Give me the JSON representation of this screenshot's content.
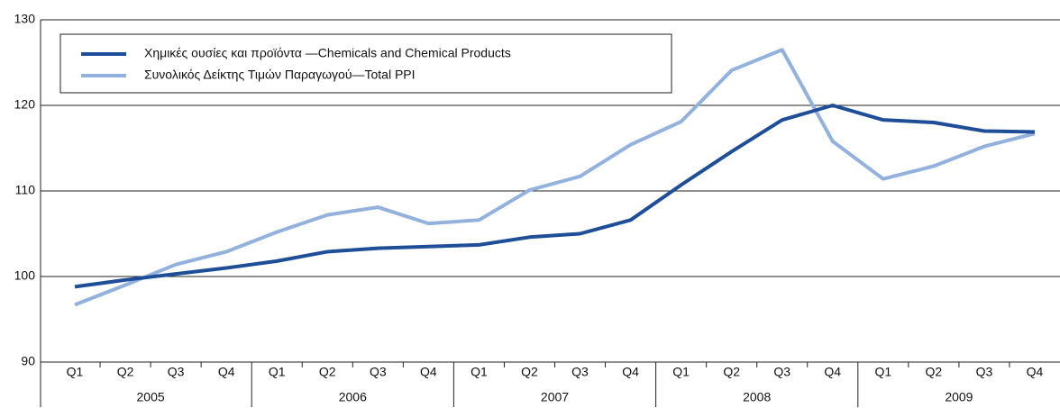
{
  "chart_data": {
    "type": "line",
    "categories": [
      "Q1",
      "Q2",
      "Q3",
      "Q4",
      "Q1",
      "Q2",
      "Q3",
      "Q4",
      "Q1",
      "Q2",
      "Q3",
      "Q4",
      "Q1",
      "Q2",
      "Q3",
      "Q4",
      "Q1",
      "Q2",
      "Q3",
      "Q4"
    ],
    "years": [
      "2005",
      "2006",
      "2007",
      "2008",
      "2009"
    ],
    "series": [
      {
        "name": "Χημικές ουσίες και προϊόντα —Chemicals and Chemical Products",
        "color": "#1f4e99",
        "values": [
          98.8,
          99.6,
          100.3,
          101.0,
          101.8,
          102.9,
          103.3,
          103.5,
          103.7,
          104.6,
          105.0,
          106.6,
          110.7,
          114.6,
          118.3,
          120.0,
          118.3,
          118.0,
          117.0,
          116.9
        ]
      },
      {
        "name": "Συνολικός Δείκτης Τιμών Παραγωγού—Total PPI",
        "color": "#92b1dc",
        "values": [
          96.7,
          99.0,
          101.4,
          102.9,
          105.2,
          107.2,
          108.1,
          106.2,
          106.6,
          110.1,
          111.7,
          115.4,
          118.1,
          124.1,
          126.5,
          115.8,
          111.4,
          112.9,
          115.2,
          116.7
        ]
      }
    ],
    "ylim": [
      90,
      130
    ],
    "yticks": [
      90,
      100,
      110,
      120,
      130
    ],
    "grid": true
  }
}
